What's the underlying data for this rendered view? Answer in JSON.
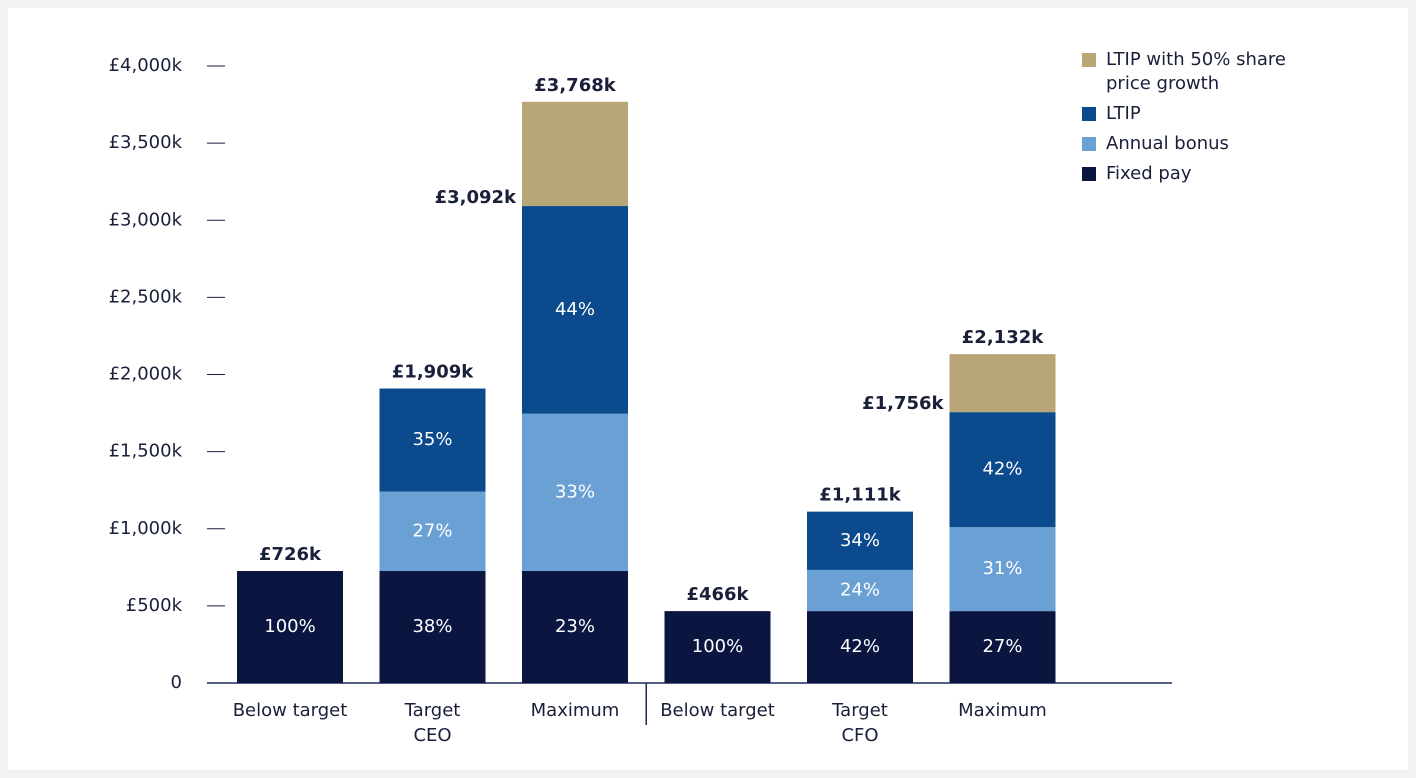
{
  "chart_data": {
    "type": "stacked_bar",
    "categories": [
      "Below target",
      "Target",
      "Maximum",
      "Below target",
      "Target",
      "Maximum"
    ],
    "groups": [
      "CEO",
      "CFO"
    ],
    "series": [
      {
        "name": "Fixed pay",
        "color": "#0b1640",
        "values": [
          726,
          726,
          726,
          466,
          466,
          466
        ],
        "percent_labels": [
          "100%",
          "38%",
          "23%",
          "100%",
          "42%",
          "27%"
        ]
      },
      {
        "name": "Annual bonus",
        "color": "#6aa0d4",
        "values": [
          0,
          515,
          1020,
          0,
          267,
          544
        ],
        "percent_labels": [
          null,
          "27%",
          "33%",
          null,
          "24%",
          "31%"
        ]
      },
      {
        "name": "LTIP",
        "color": "#0b4a8c",
        "values": [
          0,
          668,
          1346,
          0,
          378,
          746
        ],
        "percent_labels": [
          null,
          "35%",
          "44%",
          null,
          "34%",
          "42%"
        ]
      },
      {
        "name": "LTIP with 50% share price growth",
        "color": "#b8a677",
        "values": [
          0,
          0,
          676,
          0,
          0,
          376
        ]
      }
    ],
    "totals": [
      {
        "value": 726,
        "label": "£726k"
      },
      {
        "value": 1909,
        "label": "£1,909k"
      },
      {
        "value": 3768,
        "label": "£3,768k"
      },
      {
        "value": 466,
        "label": "£466k"
      },
      {
        "value": 1111,
        "label": "£1,111k"
      },
      {
        "value": 2132,
        "label": "£2,132k"
      }
    ],
    "subtotals": [
      null,
      null,
      {
        "value": 3092,
        "label": "£3,092k"
      },
      null,
      null,
      {
        "value": 1756,
        "label": "£1,756k"
      }
    ],
    "ylim": [
      0,
      4000
    ],
    "yticks": [
      0,
      {
        "value": 500,
        "label": "£500k"
      },
      {
        "value": 1000,
        "label": "£1,000k"
      },
      {
        "value": 1500,
        "label": "£1,500k"
      },
      {
        "value": 2000,
        "label": "£2,000k"
      },
      {
        "value": 2500,
        "label": "£2,500k"
      },
      {
        "value": 3000,
        "label": "£3,000k"
      },
      {
        "value": 3500,
        "label": "£3,500k"
      },
      {
        "value": 4000,
        "label": "£4,000k"
      }
    ],
    "legend": "top-right"
  }
}
